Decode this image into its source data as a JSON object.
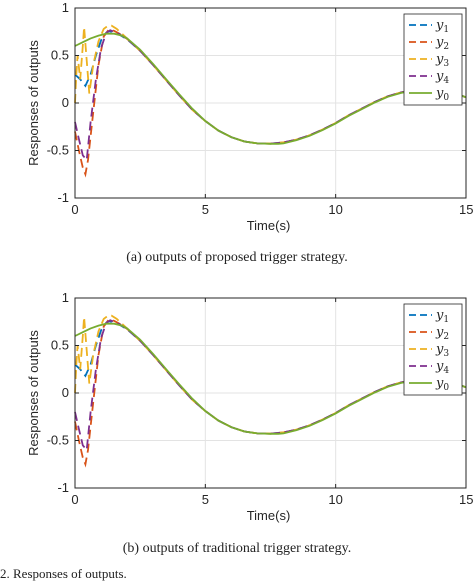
{
  "chart_data": [
    {
      "type": "line",
      "panel_tag": "(a)",
      "caption": "(a) outputs of proposed trigger strategy.",
      "xlabel": "Time(s)",
      "ylabel": "Responses of outputs",
      "xlim": [
        0,
        15
      ],
      "ylim": [
        -1,
        1
      ],
      "xticks": [
        "0",
        "5",
        "10",
        "15"
      ],
      "yticks": [
        "1",
        "0.5",
        "0",
        "-0.5",
        "-1"
      ],
      "grid": true,
      "legend_position": "top-right",
      "series": [
        {
          "name": "y1",
          "style": "dashed",
          "color": "#0072bd",
          "x": [
            0,
            0.2,
            0.4,
            0.6,
            0.8,
            1.0,
            1.2,
            1.3,
            1.5,
            1.7,
            2.0,
            2.5,
            3,
            3.5,
            4,
            4.5,
            5,
            5.5,
            6,
            6.5,
            7,
            7.5,
            8,
            8.5,
            9,
            9.5,
            10,
            10.5,
            11,
            11.5,
            12,
            12.5,
            13,
            13.5,
            14,
            14.5,
            15
          ],
          "y": [
            0.3,
            0.25,
            0.18,
            0.3,
            0.5,
            0.66,
            0.74,
            0.755,
            0.745,
            0.72,
            0.67,
            0.55,
            0.4,
            0.24,
            0.08,
            -0.07,
            -0.19,
            -0.29,
            -0.36,
            -0.405,
            -0.425,
            -0.428,
            -0.415,
            -0.385,
            -0.34,
            -0.28,
            -0.21,
            -0.13,
            -0.06,
            0.01,
            0.07,
            0.11,
            0.14,
            0.15,
            0.14,
            0.11,
            0.06
          ]
        },
        {
          "name": "y2",
          "style": "dashed",
          "color": "#d95319",
          "x": [
            0,
            0.15,
            0.3,
            0.4,
            0.5,
            0.7,
            0.9,
            1.1,
            1.3,
            1.5,
            1.7,
            2.0,
            2.5,
            3,
            3.5,
            4,
            4.5,
            5,
            5.5,
            6,
            6.5,
            7,
            7.5,
            8,
            8.5,
            9,
            9.5,
            10,
            10.5,
            11,
            11.5,
            12,
            12.5,
            13,
            13.5,
            14,
            14.5,
            15
          ],
          "y": [
            -0.3,
            -0.5,
            -0.68,
            -0.75,
            -0.6,
            -0.1,
            0.4,
            0.7,
            0.775,
            0.76,
            0.73,
            0.675,
            0.55,
            0.4,
            0.24,
            0.08,
            -0.07,
            -0.19,
            -0.29,
            -0.36,
            -0.405,
            -0.425,
            -0.428,
            -0.415,
            -0.385,
            -0.34,
            -0.28,
            -0.21,
            -0.13,
            -0.06,
            0.01,
            0.07,
            0.11,
            0.14,
            0.15,
            0.14,
            0.11,
            0.06
          ]
        },
        {
          "name": "y3",
          "style": "dashed",
          "color": "#edb120",
          "x": [
            0,
            0.05,
            0.1,
            0.2,
            0.3,
            0.35,
            0.45,
            0.55,
            0.7,
            0.9,
            1.1,
            1.3,
            1.4,
            1.6,
            1.8,
            2.0,
            2.5,
            3,
            3.5,
            4,
            4.5,
            5,
            5.5,
            6,
            6.5,
            7,
            7.5,
            8,
            8.5,
            9,
            9.5,
            10,
            10.5,
            11,
            11.5,
            12,
            12.5,
            13,
            13.5,
            14,
            14.5,
            15
          ],
          "y": [
            0.0,
            0.3,
            0.5,
            0.25,
            0.6,
            0.8,
            0.45,
            0.1,
            0.4,
            0.65,
            0.78,
            0.82,
            0.815,
            0.78,
            0.73,
            0.68,
            0.55,
            0.4,
            0.24,
            0.08,
            -0.07,
            -0.19,
            -0.29,
            -0.36,
            -0.405,
            -0.425,
            -0.428,
            -0.415,
            -0.385,
            -0.34,
            -0.28,
            -0.21,
            -0.13,
            -0.06,
            0.01,
            0.07,
            0.11,
            0.14,
            0.15,
            0.14,
            0.11,
            0.06
          ]
        },
        {
          "name": "y4",
          "style": "dashed",
          "color": "#7e2f8e",
          "x": [
            0,
            0.15,
            0.3,
            0.45,
            0.6,
            0.8,
            1.0,
            1.2,
            1.35,
            1.5,
            1.7,
            2.0,
            2.5,
            3,
            3.5,
            4,
            4.5,
            5,
            5.5,
            6,
            6.5,
            7,
            7.5,
            8,
            8.5,
            9,
            9.5,
            10,
            10.5,
            11,
            11.5,
            12,
            12.5,
            13,
            13.5,
            14,
            14.5,
            15
          ],
          "y": [
            -0.2,
            -0.38,
            -0.55,
            -0.6,
            -0.2,
            0.25,
            0.58,
            0.74,
            0.765,
            0.75,
            0.725,
            0.675,
            0.55,
            0.4,
            0.24,
            0.08,
            -0.07,
            -0.19,
            -0.29,
            -0.36,
            -0.405,
            -0.425,
            -0.428,
            -0.415,
            -0.385,
            -0.34,
            -0.28,
            -0.21,
            -0.13,
            -0.06,
            0.01,
            0.07,
            0.11,
            0.14,
            0.15,
            0.14,
            0.11,
            0.06
          ]
        },
        {
          "name": "y0",
          "style": "solid",
          "color": "#77ac30",
          "x": [
            0,
            0.3,
            0.6,
            0.9,
            1.2,
            1.5,
            1.8,
            2.0,
            2.5,
            3,
            3.5,
            4,
            4.5,
            5,
            5.5,
            6,
            6.5,
            7,
            7.5,
            7.8,
            8,
            8.5,
            9,
            9.5,
            10,
            10.5,
            11,
            11.5,
            12,
            12.5,
            13,
            13.5,
            14,
            14.5,
            15
          ],
          "y": [
            0.6,
            0.64,
            0.68,
            0.71,
            0.73,
            0.73,
            0.71,
            0.68,
            0.56,
            0.41,
            0.25,
            0.09,
            -0.06,
            -0.19,
            -0.29,
            -0.36,
            -0.405,
            -0.425,
            -0.43,
            -0.43,
            -0.425,
            -0.39,
            -0.345,
            -0.285,
            -0.215,
            -0.135,
            -0.065,
            0.005,
            0.065,
            0.105,
            0.135,
            0.145,
            0.14,
            0.11,
            0.06
          ]
        }
      ]
    },
    {
      "type": "line",
      "panel_tag": "(b)",
      "caption": "(b) outputs of traditional trigger strategy.",
      "xlabel": "Time(s)",
      "ylabel": "Responses of outputs",
      "xlim": [
        0,
        15
      ],
      "ylim": [
        -1,
        1
      ],
      "xticks": [
        "0",
        "5",
        "10",
        "15"
      ],
      "yticks": [
        "1",
        "0.5",
        "0",
        "-0.5",
        "-1"
      ],
      "grid": true,
      "legend_position": "top-right",
      "series": [
        {
          "name": "y1",
          "style": "dashed",
          "color": "#0072bd",
          "x": [
            0,
            0.2,
            0.4,
            0.6,
            0.8,
            1.0,
            1.2,
            1.3,
            1.5,
            1.7,
            2.0,
            2.5,
            3,
            3.5,
            4,
            4.5,
            5,
            5.5,
            6,
            6.5,
            7,
            7.5,
            8,
            8.5,
            9,
            9.5,
            10,
            10.5,
            11,
            11.5,
            12,
            12.5,
            13,
            13.5,
            14,
            14.5,
            15
          ],
          "y": [
            0.3,
            0.25,
            0.18,
            0.3,
            0.5,
            0.66,
            0.74,
            0.755,
            0.745,
            0.72,
            0.67,
            0.55,
            0.4,
            0.24,
            0.08,
            -0.07,
            -0.19,
            -0.29,
            -0.36,
            -0.405,
            -0.425,
            -0.428,
            -0.415,
            -0.385,
            -0.34,
            -0.28,
            -0.21,
            -0.13,
            -0.06,
            0.01,
            0.07,
            0.11,
            0.14,
            0.15,
            0.14,
            0.11,
            0.06
          ]
        },
        {
          "name": "y2",
          "style": "dashed",
          "color": "#d95319",
          "x": [
            0,
            0.15,
            0.3,
            0.4,
            0.5,
            0.7,
            0.9,
            1.1,
            1.3,
            1.5,
            1.7,
            2.0,
            2.5,
            3,
            3.5,
            4,
            4.5,
            5,
            5.5,
            6,
            6.5,
            7,
            7.5,
            8,
            8.5,
            9,
            9.5,
            10,
            10.5,
            11,
            11.5,
            12,
            12.5,
            13,
            13.5,
            14,
            14.5,
            15
          ],
          "y": [
            -0.3,
            -0.5,
            -0.68,
            -0.75,
            -0.6,
            -0.1,
            0.4,
            0.7,
            0.775,
            0.76,
            0.73,
            0.675,
            0.55,
            0.4,
            0.24,
            0.08,
            -0.07,
            -0.19,
            -0.29,
            -0.36,
            -0.405,
            -0.425,
            -0.428,
            -0.415,
            -0.385,
            -0.34,
            -0.28,
            -0.21,
            -0.13,
            -0.06,
            0.01,
            0.07,
            0.11,
            0.14,
            0.15,
            0.14,
            0.11,
            0.06
          ]
        },
        {
          "name": "y3",
          "style": "dashed",
          "color": "#edb120",
          "x": [
            0,
            0.05,
            0.1,
            0.2,
            0.3,
            0.35,
            0.45,
            0.55,
            0.7,
            0.9,
            1.1,
            1.3,
            1.4,
            1.6,
            1.8,
            2.0,
            2.5,
            3,
            3.5,
            4,
            4.5,
            5,
            5.5,
            6,
            6.5,
            7,
            7.5,
            8,
            8.5,
            9,
            9.5,
            10,
            10.5,
            11,
            11.5,
            12,
            12.5,
            13,
            13.5,
            14,
            14.5,
            15
          ],
          "y": [
            0.0,
            0.3,
            0.5,
            0.25,
            0.6,
            0.8,
            0.45,
            0.1,
            0.4,
            0.65,
            0.78,
            0.82,
            0.815,
            0.78,
            0.73,
            0.68,
            0.55,
            0.4,
            0.24,
            0.08,
            -0.07,
            -0.19,
            -0.29,
            -0.36,
            -0.405,
            -0.425,
            -0.428,
            -0.415,
            -0.385,
            -0.34,
            -0.28,
            -0.21,
            -0.13,
            -0.06,
            0.01,
            0.07,
            0.11,
            0.14,
            0.15,
            0.14,
            0.11,
            0.06
          ]
        },
        {
          "name": "y4",
          "style": "dashed",
          "color": "#7e2f8e",
          "x": [
            0,
            0.15,
            0.3,
            0.45,
            0.6,
            0.8,
            1.0,
            1.2,
            1.35,
            1.5,
            1.7,
            2.0,
            2.5,
            3,
            3.5,
            4,
            4.5,
            5,
            5.5,
            6,
            6.5,
            7,
            7.5,
            8,
            8.5,
            9,
            9.5,
            10,
            10.5,
            11,
            11.5,
            12,
            12.5,
            13,
            13.5,
            14,
            14.5,
            15
          ],
          "y": [
            -0.2,
            -0.38,
            -0.55,
            -0.6,
            -0.2,
            0.25,
            0.58,
            0.74,
            0.765,
            0.75,
            0.725,
            0.675,
            0.55,
            0.4,
            0.24,
            0.08,
            -0.07,
            -0.19,
            -0.29,
            -0.36,
            -0.405,
            -0.425,
            -0.428,
            -0.415,
            -0.385,
            -0.34,
            -0.28,
            -0.21,
            -0.13,
            -0.06,
            0.01,
            0.07,
            0.11,
            0.14,
            0.15,
            0.14,
            0.11,
            0.06
          ]
        },
        {
          "name": "y0",
          "style": "solid",
          "color": "#77ac30",
          "x": [
            0,
            0.3,
            0.6,
            0.9,
            1.2,
            1.5,
            1.8,
            2.0,
            2.5,
            3,
            3.5,
            4,
            4.5,
            5,
            5.5,
            6,
            6.5,
            7,
            7.5,
            7.8,
            8,
            8.5,
            9,
            9.5,
            10,
            10.5,
            11,
            11.5,
            12,
            12.5,
            13,
            13.5,
            14,
            14.5,
            15
          ],
          "y": [
            0.6,
            0.64,
            0.68,
            0.71,
            0.73,
            0.73,
            0.71,
            0.68,
            0.56,
            0.41,
            0.25,
            0.09,
            -0.06,
            -0.19,
            -0.29,
            -0.36,
            -0.405,
            -0.425,
            -0.43,
            -0.43,
            -0.425,
            -0.39,
            -0.345,
            -0.285,
            -0.215,
            -0.135,
            -0.065,
            0.005,
            0.065,
            0.105,
            0.135,
            0.145,
            0.14,
            0.11,
            0.06
          ]
        }
      ]
    }
  ],
  "figure_note": "2.    Responses of outputs."
}
